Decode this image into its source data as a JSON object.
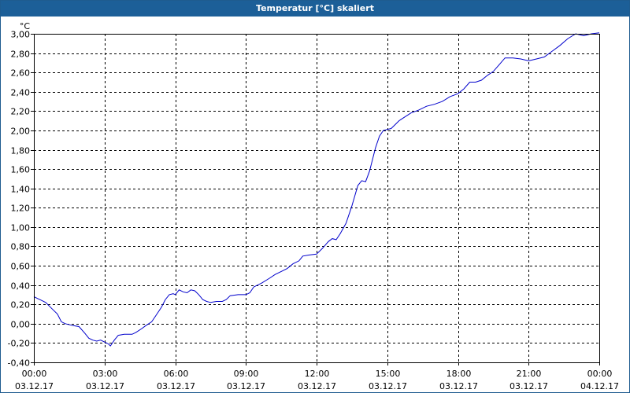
{
  "window": {
    "title": "Temperatur [°C] skaliert"
  },
  "chart_data": {
    "type": "line",
    "title": "Temperatur [°C] skaliert",
    "unit_label": "°C",
    "ylim": [
      -0.4,
      3.0
    ],
    "y_ticks": [
      -0.4,
      -0.2,
      0.0,
      0.2,
      0.4,
      0.6,
      0.8,
      1.0,
      1.2,
      1.4,
      1.6,
      1.8,
      2.0,
      2.2,
      2.4,
      2.6,
      2.8,
      3.0
    ],
    "y_tick_labels": [
      "-0,40",
      "-0,20",
      "0,00",
      "0,20",
      "0,40",
      "0,60",
      "0,80",
      "1,00",
      "1,20",
      "1,40",
      "1,60",
      "1,80",
      "2,00",
      "2,20",
      "2,40",
      "2,60",
      "2,80",
      "3,00"
    ],
    "xlim": [
      "03.12.17 00:00",
      "04.12.17 00:00"
    ],
    "x_ticks": [
      {
        "time": "00:00",
        "date": "03.12.17"
      },
      {
        "time": "03:00",
        "date": "03.12.17"
      },
      {
        "time": "06:00",
        "date": "03.12.17"
      },
      {
        "time": "09:00",
        "date": "03.12.17"
      },
      {
        "time": "12:00",
        "date": "03.12.17"
      },
      {
        "time": "15:00",
        "date": "03.12.17"
      },
      {
        "time": "18:00",
        "date": "03.12.17"
      },
      {
        "time": "21:00",
        "date": "03.12.17"
      },
      {
        "time": "00:00",
        "date": "04.12.17"
      }
    ],
    "grid": true,
    "series": [
      {
        "color": "#0000cc",
        "points": [
          [
            "03.12.17 00:00",
            0.28
          ],
          [
            "03.12.17 00:10",
            0.26
          ],
          [
            "03.12.17 00:20",
            0.24
          ],
          [
            "03.12.17 00:30",
            0.22
          ],
          [
            "03.12.17 00:45",
            0.16
          ],
          [
            "03.12.17 01:00",
            0.1
          ],
          [
            "03.12.17 01:10",
            0.02
          ],
          [
            "03.12.17 01:20",
            0.0
          ],
          [
            "03.12.17 01:40",
            -0.02
          ],
          [
            "03.12.17 01:55",
            -0.03
          ],
          [
            "03.12.17 02:10",
            -0.1
          ],
          [
            "03.12.17 02:20",
            -0.15
          ],
          [
            "03.12.17 02:30",
            -0.17
          ],
          [
            "03.12.17 02:40",
            -0.18
          ],
          [
            "03.12.17 02:50",
            -0.17
          ],
          [
            "03.12.17 03:00",
            -0.19
          ],
          [
            "03.12.17 03:10",
            -0.21
          ],
          [
            "03.12.17 03:15",
            -0.23
          ],
          [
            "03.12.17 03:25",
            -0.17
          ],
          [
            "03.12.17 03:35",
            -0.12
          ],
          [
            "03.12.17 03:50",
            -0.11
          ],
          [
            "03.12.17 04:10",
            -0.11
          ],
          [
            "03.12.17 04:20",
            -0.09
          ],
          [
            "03.12.17 04:35",
            -0.05
          ],
          [
            "03.12.17 04:45",
            -0.02
          ],
          [
            "03.12.17 05:00",
            0.02
          ],
          [
            "03.12.17 05:10",
            0.08
          ],
          [
            "03.12.17 05:25",
            0.17
          ],
          [
            "03.12.17 05:35",
            0.25
          ],
          [
            "03.12.17 05:45",
            0.3
          ],
          [
            "03.12.17 05:55",
            0.31
          ],
          [
            "03.12.17 06:00",
            0.3
          ],
          [
            "03.12.17 06:10",
            0.35
          ],
          [
            "03.12.17 06:20",
            0.33
          ],
          [
            "03.12.17 06:30",
            0.32
          ],
          [
            "03.12.17 06:40",
            0.35
          ],
          [
            "03.12.17 06:50",
            0.34
          ],
          [
            "03.12.17 07:00",
            0.3
          ],
          [
            "03.12.17 07:10",
            0.25
          ],
          [
            "03.12.17 07:20",
            0.23
          ],
          [
            "03.12.17 07:30",
            0.22
          ],
          [
            "03.12.17 07:45",
            0.23
          ],
          [
            "03.12.17 08:00",
            0.23
          ],
          [
            "03.12.17 08:10",
            0.25
          ],
          [
            "03.12.17 08:20",
            0.29
          ],
          [
            "03.12.17 08:40",
            0.3
          ],
          [
            "03.12.17 09:00",
            0.3
          ],
          [
            "03.12.17 09:10",
            0.32
          ],
          [
            "03.12.17 09:20",
            0.38
          ],
          [
            "03.12.17 09:40",
            0.42
          ],
          [
            "03.12.17 10:00",
            0.47
          ],
          [
            "03.12.17 10:15",
            0.51
          ],
          [
            "03.12.17 10:30",
            0.54
          ],
          [
            "03.12.17 10:45",
            0.57
          ],
          [
            "03.12.17 11:00",
            0.62
          ],
          [
            "03.12.17 11:15",
            0.65
          ],
          [
            "03.12.17 11:25",
            0.7
          ],
          [
            "03.12.17 11:40",
            0.71
          ],
          [
            "03.12.17 12:00",
            0.72
          ],
          [
            "03.12.17 12:15",
            0.78
          ],
          [
            "03.12.17 12:30",
            0.85
          ],
          [
            "03.12.17 12:40",
            0.88
          ],
          [
            "03.12.17 12:50",
            0.87
          ],
          [
            "03.12.17 13:00",
            0.93
          ],
          [
            "03.12.17 13:15",
            1.04
          ],
          [
            "03.12.17 13:30",
            1.22
          ],
          [
            "03.12.17 13:45",
            1.43
          ],
          [
            "03.12.17 13:55",
            1.48
          ],
          [
            "03.12.17 14:05",
            1.47
          ],
          [
            "03.12.17 14:15",
            1.58
          ],
          [
            "03.12.17 14:30",
            1.82
          ],
          [
            "03.12.17 14:40",
            1.94
          ],
          [
            "03.12.17 14:50",
            2.0
          ],
          [
            "03.12.17 15:00",
            2.01
          ],
          [
            "03.12.17 15:10",
            2.02
          ],
          [
            "03.12.17 15:20",
            2.06
          ],
          [
            "03.12.17 15:30",
            2.1
          ],
          [
            "03.12.17 15:45",
            2.14
          ],
          [
            "03.12.17 16:00",
            2.18
          ],
          [
            "03.12.17 16:20",
            2.21
          ],
          [
            "03.12.17 16:40",
            2.25
          ],
          [
            "03.12.17 17:00",
            2.27
          ],
          [
            "03.12.17 17:20",
            2.3
          ],
          [
            "03.12.17 17:40",
            2.35
          ],
          [
            "03.12.17 18:00",
            2.38
          ],
          [
            "03.12.17 18:15",
            2.43
          ],
          [
            "03.12.17 18:30",
            2.5
          ],
          [
            "03.12.17 18:45",
            2.5
          ],
          [
            "03.12.17 19:00",
            2.52
          ],
          [
            "03.12.17 19:15",
            2.57
          ],
          [
            "03.12.17 19:30",
            2.61
          ],
          [
            "03.12.17 19:45",
            2.68
          ],
          [
            "03.12.17 20:00",
            2.75
          ],
          [
            "03.12.17 20:20",
            2.75
          ],
          [
            "03.12.17 20:40",
            2.74
          ],
          [
            "03.12.17 21:00",
            2.72
          ],
          [
            "03.12.17 21:20",
            2.74
          ],
          [
            "03.12.17 21:40",
            2.76
          ],
          [
            "03.12.17 22:00",
            2.82
          ],
          [
            "03.12.17 22:20",
            2.88
          ],
          [
            "03.12.17 22:40",
            2.95
          ],
          [
            "03.12.17 23:00",
            3.0
          ],
          [
            "03.12.17 23:20",
            2.98
          ],
          [
            "03.12.17 23:40",
            3.0
          ],
          [
            "04.12.17 00:00",
            3.01
          ]
        ]
      }
    ]
  }
}
